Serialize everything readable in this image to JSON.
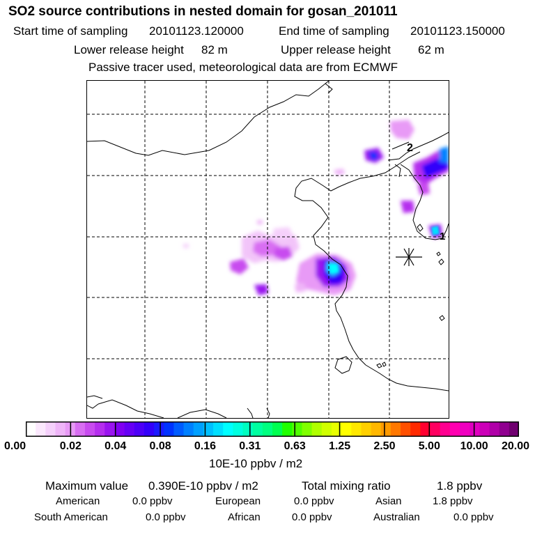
{
  "header": {
    "title": "SO2 source contributions in nested domain for gosan_201011",
    "start_label": "Start time of sampling",
    "start_value": "20101123.120000",
    "end_label": "End time of sampling",
    "end_value": "20101123.150000",
    "lower_label": "Lower release height",
    "lower_value": "82 m",
    "upper_label": "Upper release height",
    "upper_value": "62 m",
    "note": "Passive tracer used, meteorological data are from ECMWF"
  },
  "map": {
    "markers": [
      {
        "label": "1",
        "lon": 126.2,
        "lat": 33.3
      },
      {
        "label": "2",
        "lon": 124.5,
        "lat": 40.0
      }
    ],
    "receptor_symbol": "✳",
    "colors": {
      "line": "#000000",
      "grid": "#000000"
    }
  },
  "colorbar": {
    "ticks": [
      "0.00",
      "0.02",
      "0.04",
      "0.08",
      "0.16",
      "0.31",
      "0.63",
      "1.25",
      "2.50",
      "5.00",
      "10.00",
      "20.00"
    ],
    "unit": "10E-10 ppbv / m2",
    "colors": [
      "#ffffff",
      "#fbe8fd",
      "#f5d0fb",
      "#efb5f8",
      "#e89af6",
      "#d86ef2",
      "#c84bef",
      "#b52eee",
      "#9a14ef",
      "#8000f2",
      "#6600f5",
      "#4d00f7",
      "#3300fa",
      "#1a1aff",
      "#0033ff",
      "#005cff",
      "#0080ff",
      "#00a0ff",
      "#00c0ff",
      "#00dfff",
      "#00ffff",
      "#00ffe0",
      "#00ffc0",
      "#00ffa0",
      "#00ff80",
      "#00ff50",
      "#20ff00",
      "#50ff00",
      "#80ff00",
      "#b0ff00",
      "#d0ff00",
      "#e8ff00",
      "#ffff00",
      "#ffe800",
      "#ffd000",
      "#ffb800",
      "#ff9a00",
      "#ff7800",
      "#ff5000",
      "#ff2a00",
      "#ff0030",
      "#ff0060",
      "#ff0090",
      "#ff00b0",
      "#f000c0",
      "#e000c0",
      "#cc00b8",
      "#b000a8",
      "#900090",
      "#700070"
    ]
  },
  "stats": {
    "max_label": "Maximum value",
    "max_value": "0.390E-10 ppbv / m2",
    "total_label": "Total mixing ratio",
    "total_value": "1.8 ppbv",
    "regions": [
      {
        "name": "American",
        "value": "0.0 ppbv"
      },
      {
        "name": "European",
        "value": "0.0 ppbv"
      },
      {
        "name": "Asian",
        "value": "1.8 ppbv"
      },
      {
        "name": "South American",
        "value": "0.0 ppbv"
      },
      {
        "name": "African",
        "value": "0.0 ppbv"
      },
      {
        "name": "Australian",
        "value": "0.0 ppbv"
      }
    ]
  }
}
